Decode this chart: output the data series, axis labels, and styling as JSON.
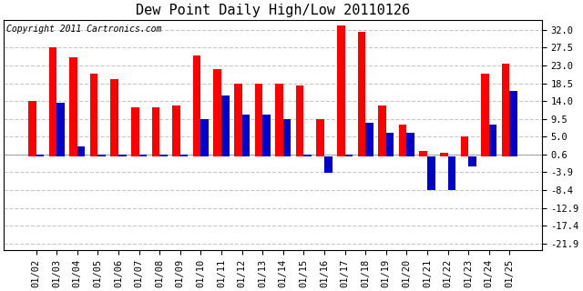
{
  "title": "Dew Point Daily High/Low 20110126",
  "copyright": "Copyright 2011 Cartronics.com",
  "dates": [
    "01/02",
    "01/03",
    "01/04",
    "01/05",
    "01/06",
    "01/07",
    "01/08",
    "01/09",
    "01/10",
    "01/11",
    "01/12",
    "01/13",
    "01/14",
    "01/15",
    "01/16",
    "01/17",
    "01/18",
    "01/19",
    "01/20",
    "01/21",
    "01/22",
    "01/23",
    "01/24",
    "01/25"
  ],
  "high": [
    14.0,
    27.5,
    25.0,
    21.0,
    19.5,
    12.5,
    12.5,
    13.0,
    25.5,
    22.0,
    18.5,
    18.5,
    18.5,
    18.0,
    9.5,
    33.0,
    31.5,
    13.0,
    8.0,
    1.5,
    1.0,
    5.0,
    21.0,
    23.5
  ],
  "low": [
    0.6,
    13.5,
    2.5,
    0.6,
    0.6,
    0.6,
    0.6,
    0.6,
    9.5,
    15.5,
    10.5,
    10.5,
    9.5,
    0.6,
    -4.0,
    0.6,
    8.5,
    6.0,
    6.0,
    -8.5,
    -8.5,
    -2.5,
    8.0,
    16.5
  ],
  "bar_color_high": "#ff0000",
  "bar_color_low": "#0000cc",
  "bg_color": "#ffffff",
  "grid_color": "#c8c8c8",
  "yticks": [
    32.0,
    27.5,
    23.0,
    18.5,
    14.0,
    9.5,
    5.0,
    0.6,
    -3.9,
    -8.4,
    -12.9,
    -17.4,
    -21.9
  ],
  "ylim": [
    -23.5,
    34.5
  ],
  "title_fontsize": 11,
  "tick_fontsize": 7.5,
  "copyright_fontsize": 7
}
